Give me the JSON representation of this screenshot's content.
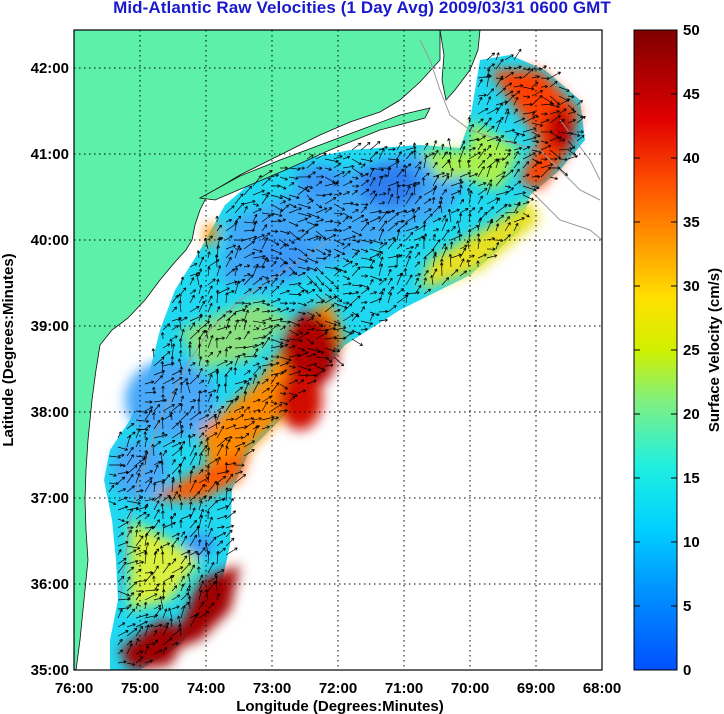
{
  "title": "Mid-Atlantic Raw Velocities (1 Day Avg) 2009/03/31 0600 GMT",
  "x_axis": {
    "label": "Longitude (Degrees:Minutes)",
    "ticks": [
      "76:00",
      "75:00",
      "74:00",
      "73:00",
      "72:00",
      "71:00",
      "70:00",
      "69:00",
      "68:00"
    ]
  },
  "y_axis": {
    "label": "Latitude (Degrees:Minutes)",
    "ticks": [
      "35:00",
      "36:00",
      "37:00",
      "38:00",
      "39:00",
      "40:00",
      "41:00",
      "42:00"
    ]
  },
  "colorbar": {
    "label": "Surface Velocity (cm/s)",
    "ticks": [
      "0",
      "5",
      "10",
      "15",
      "20",
      "25",
      "30",
      "35",
      "40",
      "45",
      "50"
    ],
    "range": [
      0,
      50
    ]
  },
  "colors": {
    "land": "#5cf0a8",
    "ocean": "#ffffff",
    "title": "#1a1acc",
    "grid": "#000000"
  },
  "map_extent": {
    "lon": [
      -76,
      -68
    ],
    "lat": [
      35,
      42.5
    ]
  }
}
